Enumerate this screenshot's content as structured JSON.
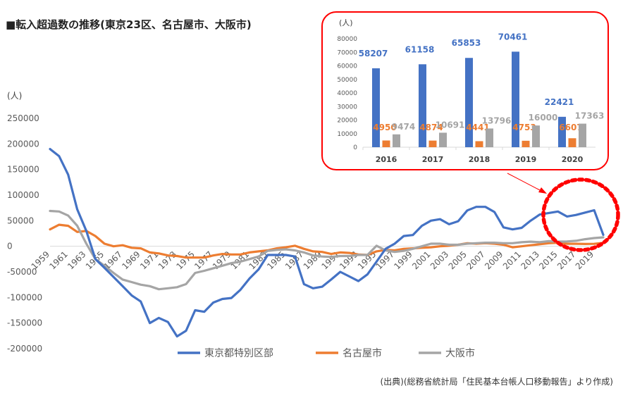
{
  "title": "■転入超過数の推移(東京23区、名古屋市、大阪市)",
  "source": "(出典)(総務省統計局「住民基本台帳人口移動報告」より作成)",
  "colors": {
    "tokyo": "#4472c4",
    "nagoya": "#ed7d31",
    "osaka": "#a5a5a5",
    "highlight": "#ff0000"
  },
  "chart_data": [
    {
      "type": "line",
      "title": "",
      "ylabel": "(人)",
      "xlabel": "",
      "ylim": [
        -200000,
        250000
      ],
      "yticks": [
        "250000",
        "200000",
        "150000",
        "100000",
        "50000",
        "0",
        "-50000",
        "-100000",
        "-150000",
        "-200000"
      ],
      "xlim": [
        1959,
        2020
      ],
      "xticks": [
        "1959",
        "1961",
        "1963",
        "1965",
        "1967",
        "1969",
        "1971",
        "1973",
        "1975",
        "1977",
        "1979",
        "1981",
        "1983",
        "1985",
        "1987",
        "1989",
        "1991",
        "1993",
        "1995",
        "1997",
        "1999",
        "2001",
        "2003",
        "2005",
        "2007",
        "2009",
        "2011",
        "2013",
        "2015",
        "2017",
        "2019"
      ],
      "legend_position": "bottom",
      "grid": false,
      "x": [
        1959,
        1960,
        1961,
        1962,
        1963,
        1964,
        1965,
        1966,
        1967,
        1968,
        1969,
        1970,
        1971,
        1972,
        1973,
        1974,
        1975,
        1976,
        1977,
        1978,
        1979,
        1980,
        1981,
        1982,
        1983,
        1984,
        1985,
        1986,
        1987,
        1988,
        1989,
        1990,
        1991,
        1992,
        1993,
        1994,
        1995,
        1996,
        1997,
        1998,
        1999,
        2000,
        2001,
        2002,
        2003,
        2004,
        2005,
        2006,
        2007,
        2008,
        2009,
        2010,
        2011,
        2012,
        2013,
        2014,
        2015,
        2016,
        2017,
        2018,
        2019,
        2020
      ],
      "series": [
        {
          "name": "東京都特別区部",
          "key": "tokyo",
          "values": [
            190000,
            176000,
            140000,
            72000,
            30000,
            -25000,
            -42000,
            -60000,
            -78000,
            -96000,
            -108000,
            -150000,
            -140000,
            -148000,
            -176000,
            -165000,
            -125000,
            -128000,
            -110000,
            -103000,
            -101000,
            -85000,
            -63000,
            -45000,
            -17000,
            -17000,
            -17000,
            -20000,
            -74000,
            -82000,
            -79000,
            -65000,
            -50000,
            -59000,
            -68000,
            -55000,
            -30000,
            -5000,
            5000,
            20000,
            22000,
            40000,
            50000,
            53000,
            43000,
            49000,
            70000,
            77000,
            77000,
            67000,
            37000,
            33000,
            36000,
            50000,
            62000,
            65000,
            68000,
            58207,
            61158,
            65853,
            70461,
            22421
          ]
        },
        {
          "name": "名古屋市",
          "key": "nagoya",
          "values": [
            33000,
            42000,
            40000,
            28000,
            30000,
            20000,
            5000,
            0,
            2000,
            -3000,
            -4000,
            -12000,
            -14000,
            -18000,
            -19000,
            -22000,
            -22000,
            -22000,
            -18000,
            -15000,
            -16000,
            -16000,
            -12000,
            -10000,
            -8000,
            -4000,
            -2000,
            1000,
            -5000,
            -10000,
            -11000,
            -15000,
            -12000,
            -13000,
            -16000,
            -17000,
            -10000,
            -7000,
            -8000,
            -5000,
            -4000,
            -3000,
            -2000,
            0,
            1000,
            3000,
            6000,
            5000,
            6000,
            5000,
            3000,
            -2000,
            0,
            2000,
            4000,
            6000,
            7000,
            4950,
            4874,
            4441,
            4753,
            6607
          ]
        },
        {
          "name": "大阪市",
          "key": "osaka",
          "values": [
            69000,
            68000,
            60000,
            40000,
            5000,
            -25000,
            -38000,
            -52000,
            -65000,
            -70000,
            -75000,
            -78000,
            -84000,
            -82000,
            -80000,
            -74000,
            -52000,
            -48000,
            -43000,
            -38000,
            -33000,
            -30000,
            -25000,
            -20000,
            -9000,
            -7000,
            -6000,
            -8000,
            -12000,
            -18000,
            -20000,
            -21000,
            -19000,
            -19000,
            -17000,
            -17000,
            1000,
            -8000,
            -11000,
            -9000,
            -5000,
            0,
            5000,
            5000,
            3000,
            3000,
            5000,
            6000,
            7000,
            7000,
            6000,
            6000,
            8000,
            9000,
            8000,
            10000,
            9000,
            9474,
            10691,
            13796,
            16000,
            17363
          ]
        }
      ]
    },
    {
      "type": "bar",
      "title": "",
      "ylabel": "(人)",
      "ylim": [
        0,
        80000
      ],
      "yticks": [
        "80000",
        "70000",
        "60000",
        "50000",
        "40000",
        "30000",
        "20000",
        "10000",
        "0"
      ],
      "categories": [
        "2016",
        "2017",
        "2018",
        "2019",
        "2020"
      ],
      "series": [
        {
          "name": "東京都特別区部",
          "key": "tokyo",
          "values": [
            58207,
            61158,
            65853,
            70461,
            22421
          ],
          "labels": [
            "58207",
            "61158",
            "65853",
            "70461",
            "22421"
          ]
        },
        {
          "name": "名古屋市",
          "key": "nagoya",
          "values": [
            4950,
            4874,
            4441,
            4753,
            6607
          ],
          "labels": [
            "4950",
            "4874",
            "4441",
            "4753",
            "6607"
          ]
        },
        {
          "name": "大阪市",
          "key": "osaka",
          "values": [
            9474,
            10691,
            13796,
            16000,
            17363
          ],
          "labels": [
            "9474",
            "10691",
            "13796",
            "16000",
            "17363"
          ]
        }
      ]
    }
  ]
}
